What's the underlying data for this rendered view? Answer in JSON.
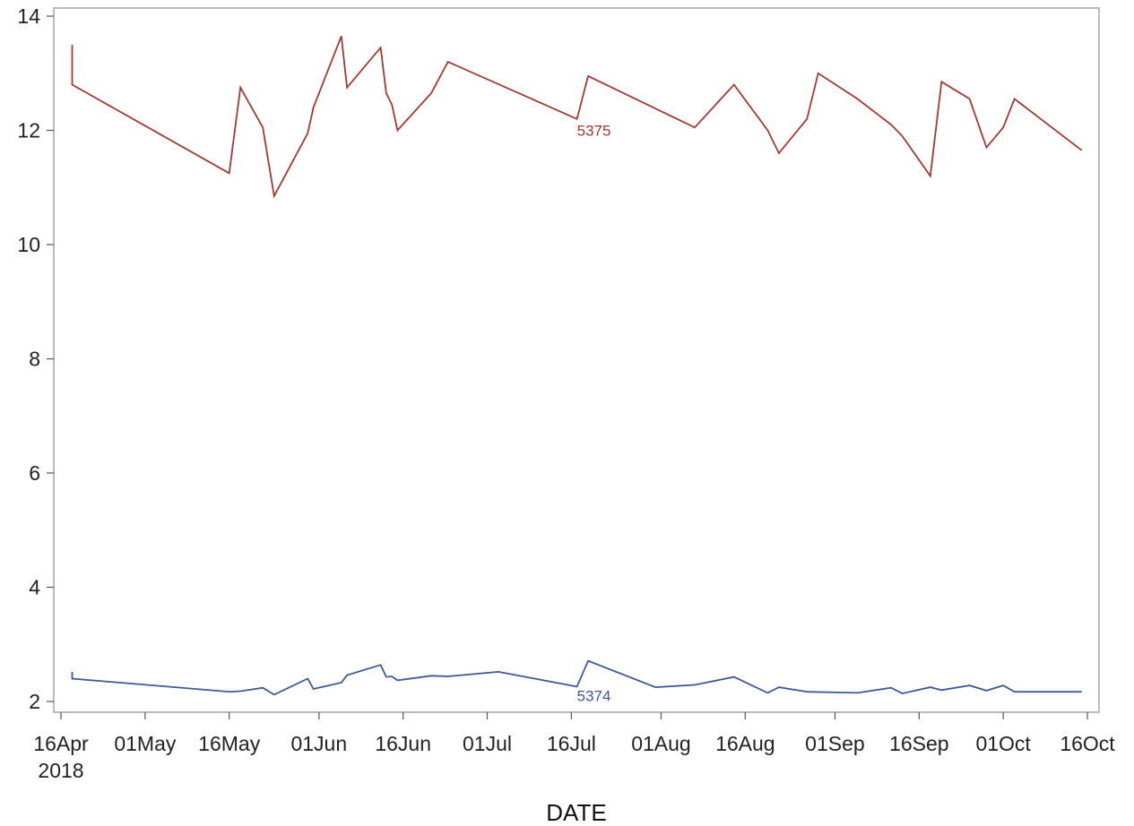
{
  "chart_data": {
    "type": "line",
    "xlabel": "DATE",
    "ylabel": "",
    "x_axis": {
      "type": "date",
      "range": [
        "2018-04-16",
        "2018-10-16"
      ],
      "ticks": [
        {
          "date": "2018-04-16",
          "label": "16Apr",
          "sublabel": "2018"
        },
        {
          "date": "2018-05-01",
          "label": "01May"
        },
        {
          "date": "2018-05-16",
          "label": "16May"
        },
        {
          "date": "2018-06-01",
          "label": "01Jun"
        },
        {
          "date": "2018-06-16",
          "label": "16Jun"
        },
        {
          "date": "2018-07-01",
          "label": "01Jul"
        },
        {
          "date": "2018-07-16",
          "label": "16Jul"
        },
        {
          "date": "2018-08-01",
          "label": "01Aug"
        },
        {
          "date": "2018-08-16",
          "label": "16Aug"
        },
        {
          "date": "2018-09-01",
          "label": "01Sep"
        },
        {
          "date": "2018-09-16",
          "label": "16Sep"
        },
        {
          "date": "2018-10-01",
          "label": "01Oct"
        },
        {
          "date": "2018-10-16",
          "label": "16Oct"
        }
      ]
    },
    "y_axis": {
      "range": [
        1.9,
        14.2
      ],
      "ticks": [
        2,
        4,
        6,
        8,
        10,
        12,
        14
      ]
    },
    "grid": false,
    "legend": "none",
    "series": [
      {
        "name": "5375",
        "color": "#A23A32",
        "label_point": {
          "date": "2018-07-17",
          "value": 12.0
        },
        "points": [
          {
            "x": "2018-04-18",
            "y": 13.5
          },
          {
            "x": "2018-04-18",
            "y": 12.8
          },
          {
            "x": "2018-05-16",
            "y": 11.25
          },
          {
            "x": "2018-05-18",
            "y": 12.75
          },
          {
            "x": "2018-05-22",
            "y": 12.05
          },
          {
            "x": "2018-05-24",
            "y": 10.85
          },
          {
            "x": "2018-05-30",
            "y": 11.95
          },
          {
            "x": "2018-05-31",
            "y": 12.4
          },
          {
            "x": "2018-06-05",
            "y": 13.65
          },
          {
            "x": "2018-06-06",
            "y": 12.75
          },
          {
            "x": "2018-06-12",
            "y": 13.45
          },
          {
            "x": "2018-06-13",
            "y": 12.65
          },
          {
            "x": "2018-06-14",
            "y": 12.45
          },
          {
            "x": "2018-06-15",
            "y": 12.0
          },
          {
            "x": "2018-06-21",
            "y": 12.65
          },
          {
            "x": "2018-06-24",
            "y": 13.2
          },
          {
            "x": "2018-07-17",
            "y": 12.2
          },
          {
            "x": "2018-07-19",
            "y": 12.95
          },
          {
            "x": "2018-08-07",
            "y": 12.05
          },
          {
            "x": "2018-08-14",
            "y": 12.8
          },
          {
            "x": "2018-08-20",
            "y": 12.0
          },
          {
            "x": "2018-08-22",
            "y": 11.6
          },
          {
            "x": "2018-08-27",
            "y": 12.2
          },
          {
            "x": "2018-08-29",
            "y": 13.0
          },
          {
            "x": "2018-09-05",
            "y": 12.55
          },
          {
            "x": "2018-09-11",
            "y": 12.1
          },
          {
            "x": "2018-09-13",
            "y": 11.9
          },
          {
            "x": "2018-09-18",
            "y": 11.2
          },
          {
            "x": "2018-09-20",
            "y": 12.85
          },
          {
            "x": "2018-09-25",
            "y": 12.55
          },
          {
            "x": "2018-09-28",
            "y": 11.7
          },
          {
            "x": "2018-10-01",
            "y": 12.05
          },
          {
            "x": "2018-10-03",
            "y": 12.55
          },
          {
            "x": "2018-10-15",
            "y": 11.65
          }
        ]
      },
      {
        "name": "5374",
        "color": "#3C5A9A",
        "label_point": {
          "date": "2018-07-17",
          "value": 2.1
        },
        "points": [
          {
            "x": "2018-04-18",
            "y": 2.52
          },
          {
            "x": "2018-04-18",
            "y": 2.4
          },
          {
            "x": "2018-05-16",
            "y": 2.17
          },
          {
            "x": "2018-05-18",
            "y": 2.18
          },
          {
            "x": "2018-05-22",
            "y": 2.24
          },
          {
            "x": "2018-05-24",
            "y": 2.12
          },
          {
            "x": "2018-05-30",
            "y": 2.4
          },
          {
            "x": "2018-05-31",
            "y": 2.22
          },
          {
            "x": "2018-06-05",
            "y": 2.33
          },
          {
            "x": "2018-06-06",
            "y": 2.46
          },
          {
            "x": "2018-06-12",
            "y": 2.64
          },
          {
            "x": "2018-06-13",
            "y": 2.43
          },
          {
            "x": "2018-06-14",
            "y": 2.44
          },
          {
            "x": "2018-06-15",
            "y": 2.37
          },
          {
            "x": "2018-06-21",
            "y": 2.45
          },
          {
            "x": "2018-06-24",
            "y": 2.44
          },
          {
            "x": "2018-07-03",
            "y": 2.52
          },
          {
            "x": "2018-07-17",
            "y": 2.26
          },
          {
            "x": "2018-07-19",
            "y": 2.71
          },
          {
            "x": "2018-07-31",
            "y": 2.25
          },
          {
            "x": "2018-08-07",
            "y": 2.29
          },
          {
            "x": "2018-08-14",
            "y": 2.43
          },
          {
            "x": "2018-08-20",
            "y": 2.15
          },
          {
            "x": "2018-08-22",
            "y": 2.25
          },
          {
            "x": "2018-08-27",
            "y": 2.17
          },
          {
            "x": "2018-09-05",
            "y": 2.15
          },
          {
            "x": "2018-09-11",
            "y": 2.24
          },
          {
            "x": "2018-09-13",
            "y": 2.14
          },
          {
            "x": "2018-09-18",
            "y": 2.25
          },
          {
            "x": "2018-09-20",
            "y": 2.2
          },
          {
            "x": "2018-09-25",
            "y": 2.28
          },
          {
            "x": "2018-09-28",
            "y": 2.19
          },
          {
            "x": "2018-10-01",
            "y": 2.28
          },
          {
            "x": "2018-10-03",
            "y": 2.17
          },
          {
            "x": "2018-10-15",
            "y": 2.17
          }
        ]
      }
    ]
  }
}
